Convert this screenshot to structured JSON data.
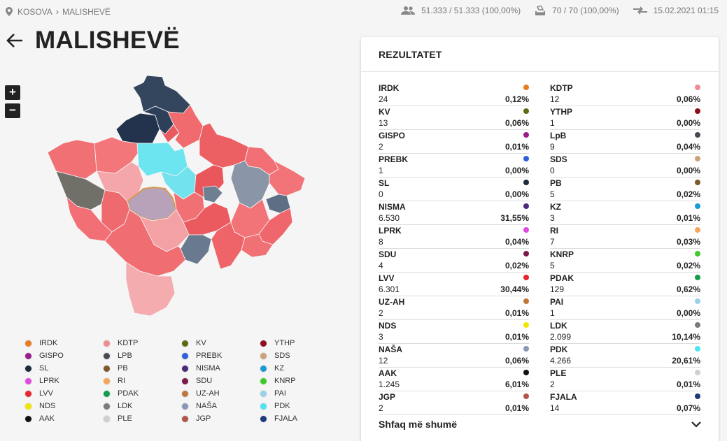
{
  "breadcrumb": {
    "country": "KOSOVA",
    "municipality": "MALISHEVË"
  },
  "stats": {
    "voters": "51.333 / 51.333 (100,00%)",
    "stations": "70 / 70 (100,00%)",
    "updated": "15.02.2021 01:15"
  },
  "title": "MALISHEVË",
  "zoom": {
    "in": "+",
    "out": "−"
  },
  "legend": [
    {
      "name": "IRDK",
      "color": "#e67e22"
    },
    {
      "name": "KDTP",
      "color": "#f08b94"
    },
    {
      "name": "KV",
      "color": "#5a6b12"
    },
    {
      "name": "YTHP",
      "color": "#8b0f1a"
    },
    {
      "name": "GISPO",
      "color": "#9b1b8c"
    },
    {
      "name": "LPB",
      "color": "#4a4a55"
    },
    {
      "name": "PREBK",
      "color": "#2f5fd9"
    },
    {
      "name": "SDS",
      "color": "#c9a37a"
    },
    {
      "name": "SL",
      "color": "#1c2a3c"
    },
    {
      "name": "PB",
      "color": "#7a5a2a"
    },
    {
      "name": "NISMA",
      "color": "#4b2a7a"
    },
    {
      "name": "KZ",
      "color": "#1a9ad4"
    },
    {
      "name": "LPRK",
      "color": "#e04ae0"
    },
    {
      "name": "RI",
      "color": "#f5a55a"
    },
    {
      "name": "SDU",
      "color": "#7a1a4a"
    },
    {
      "name": "KNRP",
      "color": "#3ecb2a"
    },
    {
      "name": "LVV",
      "color": "#e8252e"
    },
    {
      "name": "PDAK",
      "color": "#169c4a"
    },
    {
      "name": "UZ-AH",
      "color": "#c0783a"
    },
    {
      "name": "PAI",
      "color": "#9ad2ea"
    },
    {
      "name": "NDS",
      "color": "#f2e600"
    },
    {
      "name": "LDK",
      "color": "#7a7a7a"
    },
    {
      "name": "NAŠA",
      "color": "#8a98b5"
    },
    {
      "name": "PDK",
      "color": "#4fe4f2"
    },
    {
      "name": "AAK",
      "color": "#111111"
    },
    {
      "name": "PLE",
      "color": "#cfcfcf"
    },
    {
      "name": "JGP",
      "color": "#b0564a"
    },
    {
      "name": "FJALA",
      "color": "#1f3a7a"
    }
  ],
  "results": {
    "header": "REZULTATET",
    "left": [
      {
        "party": "IRDK",
        "votes": "24",
        "pct": "0,12%",
        "color": "#e67e22"
      },
      {
        "party": "KV",
        "votes": "13",
        "pct": "0,06%",
        "color": "#5a6b12"
      },
      {
        "party": "GISPO",
        "votes": "2",
        "pct": "0,01%",
        "color": "#9b1b8c"
      },
      {
        "party": "PREBK",
        "votes": "1",
        "pct": "0,00%",
        "color": "#2f5fd9"
      },
      {
        "party": "SL",
        "votes": "0",
        "pct": "0,00%",
        "color": "#1c2a3c"
      },
      {
        "party": "NISMA",
        "votes": "6.530",
        "pct": "31,55%",
        "color": "#4b2a7a"
      },
      {
        "party": "LPRK",
        "votes": "8",
        "pct": "0,04%",
        "color": "#e04ae0"
      },
      {
        "party": "SDU",
        "votes": "4",
        "pct": "0,02%",
        "color": "#7a1a4a"
      },
      {
        "party": "LVV",
        "votes": "6.301",
        "pct": "30,44%",
        "color": "#e8252e"
      },
      {
        "party": "UZ-AH",
        "votes": "2",
        "pct": "0,01%",
        "color": "#c0783a"
      },
      {
        "party": "NDS",
        "votes": "3",
        "pct": "0,01%",
        "color": "#f2e600"
      },
      {
        "party": "NAŠA",
        "votes": "12",
        "pct": "0,06%",
        "color": "#8a98b5"
      },
      {
        "party": "AAK",
        "votes": "1.245",
        "pct": "6,01%",
        "color": "#111111"
      },
      {
        "party": "JGP",
        "votes": "2",
        "pct": "0,01%",
        "color": "#b0564a"
      }
    ],
    "right": [
      {
        "party": "KDTP",
        "votes": "12",
        "pct": "0,06%",
        "color": "#f08b94"
      },
      {
        "party": "YTHP",
        "votes": "1",
        "pct": "0,00%",
        "color": "#8b0f1a"
      },
      {
        "party": "LpB",
        "votes": "9",
        "pct": "0,04%",
        "color": "#4a4a55"
      },
      {
        "party": "SDS",
        "votes": "0",
        "pct": "0,00%",
        "color": "#c9a37a"
      },
      {
        "party": "PB",
        "votes": "5",
        "pct": "0,02%",
        "color": "#7a5a2a"
      },
      {
        "party": "KZ",
        "votes": "3",
        "pct": "0,01%",
        "color": "#1a9ad4"
      },
      {
        "party": "RI",
        "votes": "7",
        "pct": "0,03%",
        "color": "#f5a55a"
      },
      {
        "party": "KNRP",
        "votes": "5",
        "pct": "0,02%",
        "color": "#3ecb2a"
      },
      {
        "party": "PDAK",
        "votes": "129",
        "pct": "0,62%",
        "color": "#169c4a"
      },
      {
        "party": "PAI",
        "votes": "1",
        "pct": "0,00%",
        "color": "#9ad2ea"
      },
      {
        "party": "LDK",
        "votes": "2.099",
        "pct": "10,14%",
        "color": "#7a7a7a"
      },
      {
        "party": "PDK",
        "votes": "4.266",
        "pct": "20,61%",
        "color": "#4fe4f2"
      },
      {
        "party": "PLE",
        "votes": "2",
        "pct": "0,01%",
        "color": "#cfcfcf"
      },
      {
        "party": "FJALA",
        "votes": "14",
        "pct": "0,07%",
        "color": "#1f3a7a"
      }
    ],
    "show_more": "Shfaq më shumë"
  }
}
